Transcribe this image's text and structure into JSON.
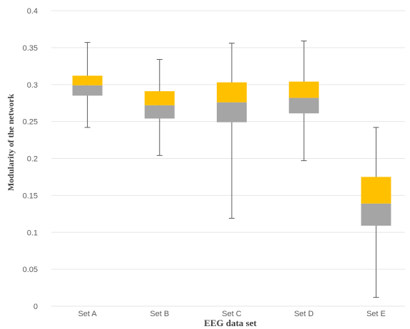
{
  "chart_data": {
    "type": "box",
    "title": "",
    "xlabel": "EEG data set",
    "ylabel": "Modularity of the network",
    "ylim": [
      0,
      0.4
    ],
    "yticks": [
      "0",
      "0.05",
      "0.1",
      "0.15",
      "0.2",
      "0.25",
      "0.3",
      "0.35",
      "0.4"
    ],
    "grid": "horizontal",
    "categories": [
      "Set A",
      "Set B",
      "Set C",
      "Set D",
      "Set E"
    ],
    "min": [
      0.242,
      0.204,
      0.119,
      0.197,
      0.012
    ],
    "q1": [
      0.285,
      0.254,
      0.249,
      0.261,
      0.109
    ],
    "median": [
      0.299,
      0.272,
      0.276,
      0.282,
      0.139
    ],
    "q3": [
      0.312,
      0.291,
      0.303,
      0.304,
      0.175
    ],
    "max": [
      0.357,
      0.334,
      0.356,
      0.359,
      0.242
    ],
    "colors": {
      "lower_box": "#a5a5a5",
      "upper_box": "#ffc000",
      "whisker": "#595959",
      "grid": "#e6e6e6"
    }
  }
}
